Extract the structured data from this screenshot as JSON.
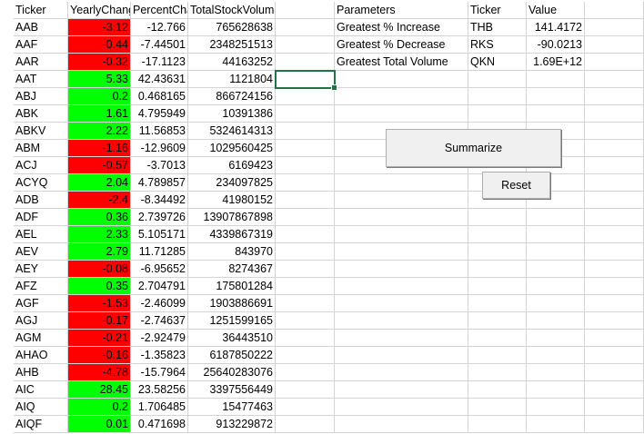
{
  "columns": {
    "ticker": "Ticker",
    "yearly_change": "YearlyChange",
    "percent_change": "PercentChange",
    "total_volume": "TotalStockVolume"
  },
  "rows": [
    {
      "ticker": "AAB",
      "yearly_change": "-3.12",
      "percent_change": "-12.766",
      "total_volume": "765628638",
      "status": "neg"
    },
    {
      "ticker": "AAF",
      "yearly_change": "-0.44",
      "percent_change": "-7.44501",
      "total_volume": "2348251513",
      "status": "neg"
    },
    {
      "ticker": "AAR",
      "yearly_change": "-0.32",
      "percent_change": "-17.1123",
      "total_volume": "44163252",
      "status": "neg"
    },
    {
      "ticker": "AAT",
      "yearly_change": "5.33",
      "percent_change": "42.43631",
      "total_volume": "1121804",
      "status": "pos"
    },
    {
      "ticker": "ABJ",
      "yearly_change": "0.2",
      "percent_change": "0.468165",
      "total_volume": "866724156",
      "status": "pos"
    },
    {
      "ticker": "ABK",
      "yearly_change": "1.61",
      "percent_change": "4.795949",
      "total_volume": "10391386",
      "status": "pos"
    },
    {
      "ticker": "ABKV",
      "yearly_change": "2.22",
      "percent_change": "11.56853",
      "total_volume": "5324614313",
      "status": "pos"
    },
    {
      "ticker": "ABM",
      "yearly_change": "-1.16",
      "percent_change": "-12.9609",
      "total_volume": "1029560425",
      "status": "neg"
    },
    {
      "ticker": "ACJ",
      "yearly_change": "-0.57",
      "percent_change": "-3.7013",
      "total_volume": "6169423",
      "status": "neg"
    },
    {
      "ticker": "ACYQ",
      "yearly_change": "2.04",
      "percent_change": "4.789857",
      "total_volume": "234097825",
      "status": "pos"
    },
    {
      "ticker": "ADB",
      "yearly_change": "-2.4",
      "percent_change": "-8.34492",
      "total_volume": "41980152",
      "status": "neg"
    },
    {
      "ticker": "ADF",
      "yearly_change": "0.36",
      "percent_change": "2.739726",
      "total_volume": "13907867898",
      "status": "pos"
    },
    {
      "ticker": "AEL",
      "yearly_change": "2.33",
      "percent_change": "5.105171",
      "total_volume": "4339867319",
      "status": "pos"
    },
    {
      "ticker": "AEV",
      "yearly_change": "2.79",
      "percent_change": "11.71285",
      "total_volume": "843970",
      "status": "pos"
    },
    {
      "ticker": "AEY",
      "yearly_change": "-0.08",
      "percent_change": "-6.95652",
      "total_volume": "8274367",
      "status": "neg"
    },
    {
      "ticker": "AFZ",
      "yearly_change": "0.35",
      "percent_change": "2.704791",
      "total_volume": "175801284",
      "status": "pos"
    },
    {
      "ticker": "AGF",
      "yearly_change": "-1.53",
      "percent_change": "-2.46099",
      "total_volume": "1903886691",
      "status": "neg"
    },
    {
      "ticker": "AGJ",
      "yearly_change": "-0.17",
      "percent_change": "-2.74637",
      "total_volume": "1251599165",
      "status": "neg"
    },
    {
      "ticker": "AGM",
      "yearly_change": "-0.21",
      "percent_change": "-2.92479",
      "total_volume": "36443510",
      "status": "neg"
    },
    {
      "ticker": "AHAO",
      "yearly_change": "-0.16",
      "percent_change": "-1.35823",
      "total_volume": "6187850222",
      "status": "neg"
    },
    {
      "ticker": "AHB",
      "yearly_change": "-4.78",
      "percent_change": "-15.7964",
      "total_volume": "25640283076",
      "status": "neg"
    },
    {
      "ticker": "AIC",
      "yearly_change": "28.45",
      "percent_change": "23.58256",
      "total_volume": "3397556449",
      "status": "pos"
    },
    {
      "ticker": "AIQ",
      "yearly_change": "0.2",
      "percent_change": "1.706485",
      "total_volume": "15477463",
      "status": "pos"
    },
    {
      "ticker": "AIQF",
      "yearly_change": "0.01",
      "percent_change": "0.471698",
      "total_volume": "913229872",
      "status": "pos"
    }
  ],
  "summary": {
    "headers": {
      "parameter": "Parameters",
      "ticker": "Ticker",
      "value": "Value"
    },
    "rows": [
      {
        "parameter": "Greatest % Increase",
        "ticker": "THB",
        "value": "141.4172"
      },
      {
        "parameter": "Greatest % Decrease",
        "ticker": "RKS",
        "value": "-90.0213"
      },
      {
        "parameter": "Greatest Total Volume",
        "ticker": "QKN",
        "value": "1.69E+12"
      }
    ]
  },
  "buttons": {
    "summarize": "Summarize",
    "reset": "Reset"
  },
  "colors": {
    "positive_fill": "#00ff00",
    "negative_fill": "#ff0000",
    "gridline": "#d4d4d4",
    "selection_border": "#217346"
  }
}
